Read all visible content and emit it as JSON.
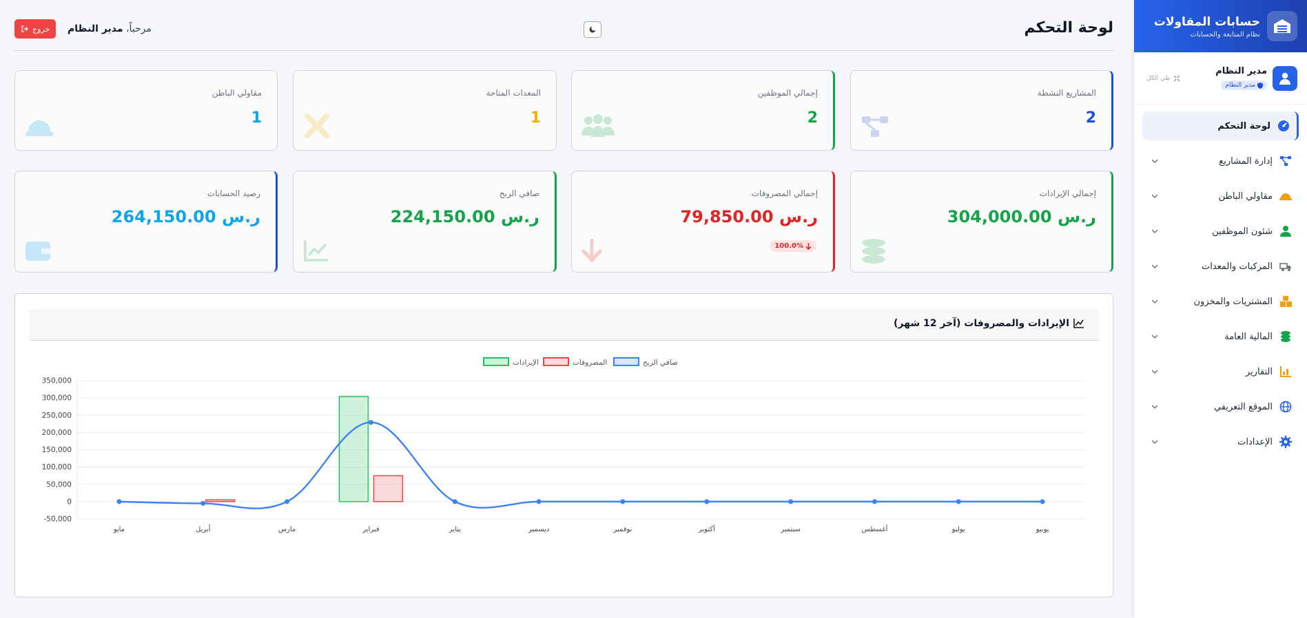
{
  "brand": {
    "title": "حسابات المقاولات",
    "subtitle": "نظام المتابعة والحسابات"
  },
  "user": {
    "name": "مدير النظام",
    "role": "مدير النظام",
    "collapse_all": "طي الكل"
  },
  "sidebar": {
    "items": [
      {
        "label": "لوحة التحكم",
        "icon": "dashboard-icon",
        "color": "#2563eb",
        "active": true
      },
      {
        "label": "إدارة المشاريع",
        "icon": "project-diagram-icon",
        "color": "#2563eb"
      },
      {
        "label": "مقاولي الباطن",
        "icon": "hard-hat-icon",
        "color": "#f59e0b"
      },
      {
        "label": "شئون الموظفين",
        "icon": "user-icon",
        "color": "#16a34a"
      },
      {
        "label": "المركبات والمعدات",
        "icon": "truck-icon",
        "color": "#6b7280"
      },
      {
        "label": "المشتريات والمخزون",
        "icon": "boxes-icon",
        "color": "#f59e0b"
      },
      {
        "label": "المالية العامة",
        "icon": "coins-icon",
        "color": "#16a34a"
      },
      {
        "label": "التقارير",
        "icon": "bar-chart-icon",
        "color": "#f59e0b"
      },
      {
        "label": "الموقع التعريفي",
        "icon": "globe-icon",
        "color": "#2563eb"
      },
      {
        "label": "الإعدادات",
        "icon": "gear-icon",
        "color": "#2563eb"
      }
    ]
  },
  "header": {
    "title": "لوحة التحكم",
    "welcome_prefix": "مرحباً،",
    "welcome_name": "مدير النظام",
    "logout": "خروج"
  },
  "stats": {
    "active_projects": {
      "label": "المشاريع النشطة",
      "value": "2",
      "color": "#1d4ed8"
    },
    "employees": {
      "label": "إجمالي الموظفين",
      "value": "2",
      "color": "#16a34a"
    },
    "equipment": {
      "label": "المعدات المتاحة",
      "value": "1",
      "color": "#eab308"
    },
    "subcontractors": {
      "label": "مقاولي الباطن",
      "value": "1",
      "color": "#0ea5e9"
    },
    "revenue": {
      "label": "إجمالي الإيرادات",
      "value": "304,000.00 ر.س",
      "color": "#16a34a"
    },
    "expenses": {
      "label": "إجمالي المصروفات",
      "value": "79,850.00 ر.س",
      "color": "#dc2626",
      "trend": "100.0%"
    },
    "net_profit": {
      "label": "صافي الربح",
      "value": "224,150.00 ر.س",
      "color": "#16a34a"
    },
    "balance": {
      "label": "رصيد الحسابات",
      "value": "264,150.00 ر.س",
      "color": "#0ea5e9"
    }
  },
  "chart_title": "الإيرادات والمصروفات (آخر 12 شهر)",
  "chart_data": {
    "type": "bar",
    "categories": [
      "يونيو",
      "يوليو",
      "أغسطس",
      "سبتمبر",
      "أكتوبر",
      "نوفمبر",
      "ديسمبر",
      "يناير",
      "فبراير",
      "مارس",
      "أبريل",
      "مايو"
    ],
    "series": [
      {
        "name": "الإيرادات",
        "type": "bar",
        "color": "#22c55e",
        "values": [
          0,
          0,
          0,
          0,
          0,
          0,
          0,
          0,
          304000,
          0,
          0,
          0
        ]
      },
      {
        "name": "المصروفات",
        "type": "bar",
        "color": "#ef4444",
        "values": [
          0,
          0,
          0,
          0,
          0,
          0,
          0,
          0,
          74850,
          0,
          5000,
          0
        ]
      },
      {
        "name": "صافي الربح",
        "type": "line",
        "color": "#3b82f6",
        "values": [
          0,
          0,
          0,
          0,
          0,
          0,
          0,
          0,
          229150,
          0,
          -5000,
          0
        ]
      }
    ],
    "ylim": [
      -50000,
      350000
    ],
    "yticks": [
      "350,000",
      "300,000",
      "250,000",
      "200,000",
      "150,000",
      "100,000",
      "50,000",
      "0",
      "-50,000"
    ],
    "ytick_values": [
      350000,
      300000,
      250000,
      200000,
      150000,
      100000,
      50000,
      0,
      -50000
    ],
    "legend_position": "top-center",
    "grid": true
  }
}
